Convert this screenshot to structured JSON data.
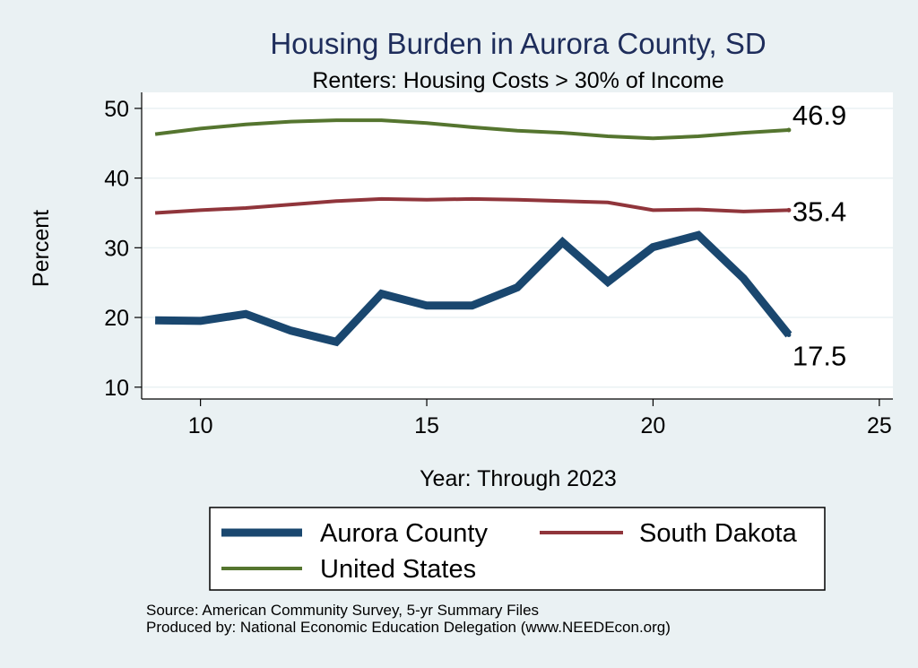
{
  "chart_data": {
    "type": "line",
    "title": "Housing Burden in Aurora County, SD",
    "subtitle": "Renters: Housing Costs > 30% of Income",
    "xlabel": "Year: Through 2023",
    "ylabel": "Percent",
    "xlim": [
      8.7,
      25.3
    ],
    "ylim": [
      8.3,
      52.3
    ],
    "xticks": [
      10,
      15,
      20,
      25
    ],
    "yticks": [
      10,
      20,
      30,
      40,
      50
    ],
    "grid": true,
    "legend_position": "bottom",
    "x": [
      9,
      10,
      11,
      12,
      13,
      14,
      15,
      16,
      17,
      18,
      19,
      20,
      21,
      22,
      23
    ],
    "series": [
      {
        "name": "Aurora County",
        "color": "#1a476f",
        "values": [
          19.6,
          19.5,
          20.5,
          18.1,
          16.5,
          23.4,
          21.7,
          21.7,
          24.3,
          30.8,
          25.1,
          30.1,
          31.8,
          25.6,
          17.5
        ],
        "end_label": "17.5"
      },
      {
        "name": "South Dakota",
        "color": "#90353b",
        "values": [
          35.0,
          35.4,
          35.7,
          36.2,
          36.7,
          37.0,
          36.9,
          37.0,
          36.9,
          36.7,
          36.5,
          35.4,
          35.5,
          35.2,
          35.4
        ],
        "end_label": "35.4"
      },
      {
        "name": "United States",
        "color": "#55752f",
        "values": [
          46.3,
          47.1,
          47.7,
          48.1,
          48.3,
          48.3,
          47.9,
          47.3,
          46.8,
          46.5,
          46.0,
          45.7,
          46.0,
          46.5,
          46.9
        ],
        "end_label": "46.9"
      }
    ],
    "notes": [
      "Source: American Community Survey, 5-yr Summary Files",
      "Produced by: National Economic Education Delegation (www.NEEDEcon.org)"
    ]
  }
}
